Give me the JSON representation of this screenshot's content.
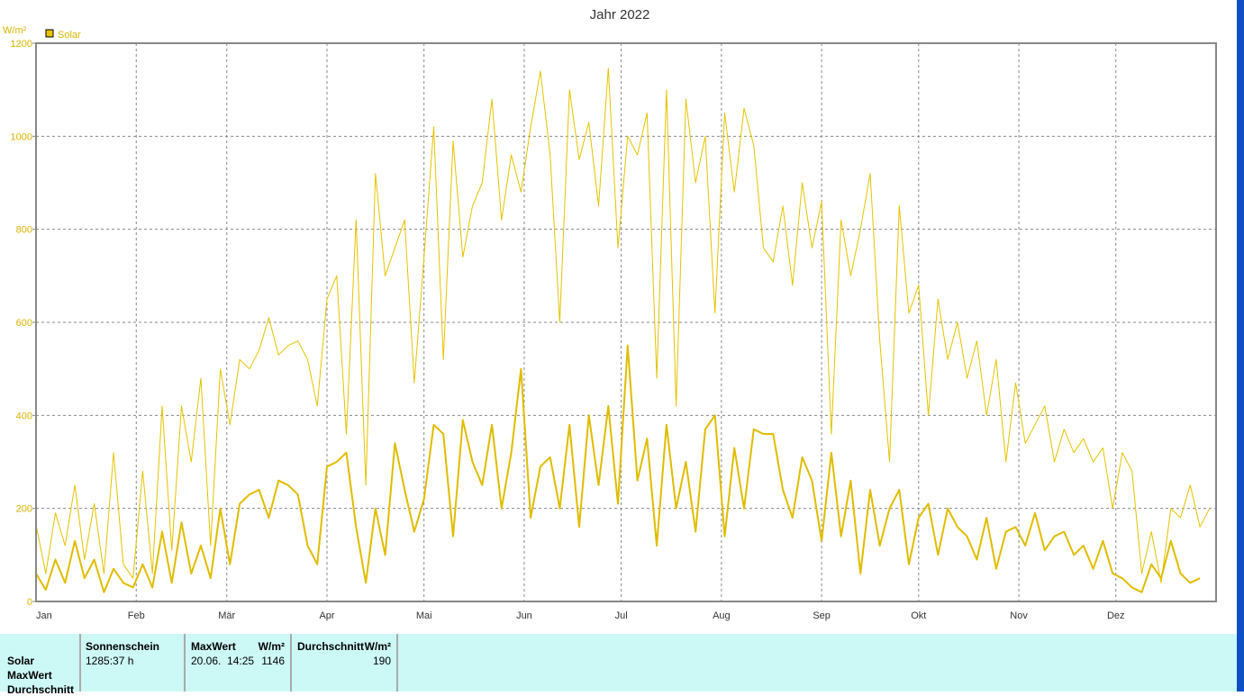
{
  "chart_data": {
    "type": "line",
    "title": "Jahr 2022",
    "ylabel": "W/m²",
    "ylim": [
      0,
      1200
    ],
    "yticks": [
      0,
      200,
      400,
      600,
      800,
      1000,
      1200
    ],
    "xlim_days": [
      0,
      365
    ],
    "month_labels": [
      "Jan",
      "Feb",
      "Mär",
      "Apr",
      "Mai",
      "Jun",
      "Jul",
      "Aug",
      "Sep",
      "Okt",
      "Nov",
      "Dez"
    ],
    "month_start_days": [
      0,
      31,
      59,
      90,
      120,
      151,
      181,
      212,
      243,
      273,
      304,
      334
    ],
    "grid": true,
    "legend": [
      {
        "name": "Solar",
        "color": "#e6c200"
      }
    ],
    "legend_position": "top-left",
    "x_step_days": 3,
    "series": [
      {
        "name": "Solar max",
        "color": "#e6c200",
        "width": 1,
        "values": [
          165,
          60,
          190,
          120,
          250,
          90,
          210,
          60,
          320,
          80,
          50,
          280,
          60,
          420,
          110,
          420,
          300,
          480,
          120,
          500,
          380,
          520,
          500,
          540,
          610,
          530,
          550,
          560,
          520,
          420,
          650,
          700,
          360,
          820,
          250,
          920,
          700,
          760,
          820,
          470,
          740,
          1020,
          520,
          990,
          740,
          850,
          900,
          1080,
          820,
          960,
          880,
          1020,
          1140,
          960,
          600,
          1100,
          950,
          1030,
          850,
          1146,
          760,
          1000,
          960,
          1050,
          480,
          1100,
          420,
          1080,
          900,
          1000,
          620,
          1050,
          880,
          1060,
          980,
          760,
          730,
          850,
          680,
          900,
          760,
          860,
          360,
          820,
          700,
          800,
          920,
          560,
          300,
          850,
          620,
          680,
          400,
          650,
          520,
          600,
          480,
          560,
          400,
          520,
          300,
          470,
          340,
          380,
          420,
          300,
          370,
          320,
          350,
          300,
          330,
          200,
          320,
          280,
          60,
          150,
          40,
          200,
          180,
          250,
          160,
          200
        ]
      },
      {
        "name": "Solar Durchschnitt",
        "color": "#e0bc00",
        "width": 2,
        "values": [
          60,
          25,
          90,
          40,
          130,
          50,
          90,
          20,
          70,
          40,
          30,
          80,
          30,
          150,
          40,
          170,
          60,
          120,
          50,
          200,
          80,
          210,
          230,
          240,
          180,
          260,
          250,
          230,
          120,
          80,
          290,
          300,
          320,
          160,
          40,
          200,
          100,
          340,
          240,
          150,
          220,
          380,
          360,
          140,
          390,
          300,
          250,
          380,
          200,
          320,
          500,
          180,
          290,
          310,
          200,
          380,
          160,
          400,
          250,
          420,
          210,
          550,
          260,
          350,
          120,
          380,
          200,
          300,
          150,
          370,
          400,
          140,
          330,
          200,
          370,
          360,
          360,
          240,
          180,
          310,
          260,
          130,
          320,
          140,
          260,
          60,
          240,
          120,
          200,
          240,
          80,
          180,
          210,
          100,
          200,
          160,
          140,
          90,
          180,
          70,
          150,
          160,
          120,
          190,
          110,
          140,
          150,
          100,
          120,
          70,
          130,
          60,
          50,
          30,
          20,
          80,
          50,
          130,
          60,
          40,
          50
        ]
      }
    ]
  },
  "table": {
    "row_labels": [
      "Solar",
      "MaxWert",
      "Durchschnitt"
    ],
    "sonnenschein_header": "Sonnenschein",
    "sonnenschein_value": "1285:37 h",
    "maxwert_header": "MaxWert",
    "maxwert_unit": "W/m²",
    "maxwert_date": "20.06.  14:25",
    "maxwert_value": "1146",
    "avg_header": "Durchschnitt",
    "avg_unit": "W/m²",
    "avg_value": "190"
  }
}
